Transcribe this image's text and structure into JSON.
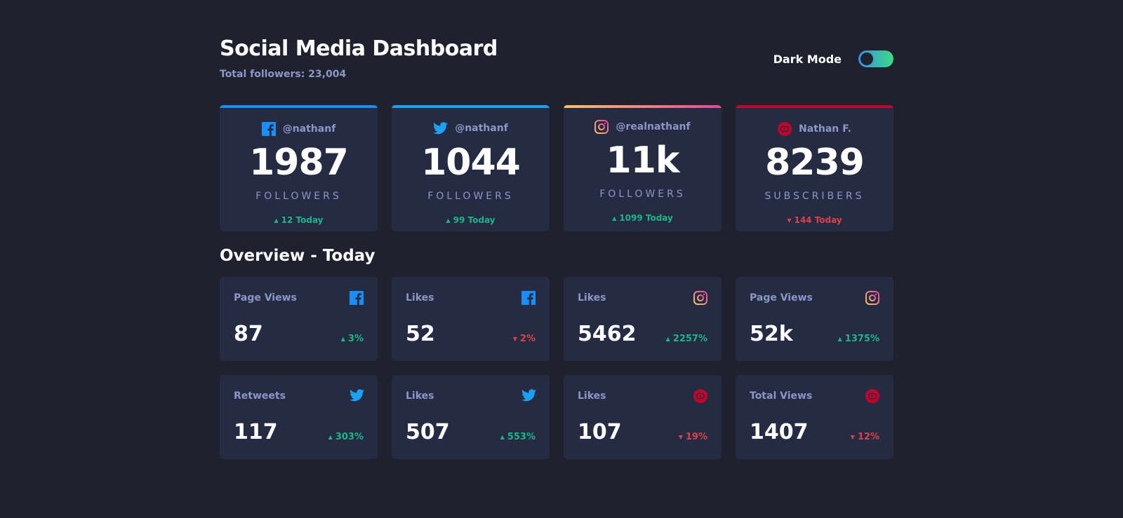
{
  "header": {
    "title": "Social Media Dashboard",
    "total_followers": "Total followers: 23,004",
    "toggle_label": "Dark Mode"
  },
  "followers": [
    {
      "platform": "facebook",
      "icon": "facebook-icon",
      "handle": "@nathanf",
      "count": "1987",
      "label": "FOLLOWERS",
      "today": "12 Today",
      "trend": "up",
      "accent": "#198ff5"
    },
    {
      "platform": "twitter",
      "icon": "twitter-icon",
      "handle": "@nathanf",
      "count": "1044",
      "label": "FOLLOWERS",
      "today": "99 Today",
      "trend": "up",
      "accent": "#1ca0f2"
    },
    {
      "platform": "instagram",
      "icon": "instagram-icon",
      "handle": "@realnathanf",
      "count": "11k",
      "label": "FOLLOWERS",
      "today": "1099 Today",
      "trend": "up",
      "accent": "#df4996"
    },
    {
      "platform": "youtube",
      "icon": "youtube-icon",
      "handle": "Nathan F.",
      "count": "8239",
      "label": "SUBSCRIBERS",
      "today": "144 Today",
      "trend": "down",
      "accent": "#c4032a"
    }
  ],
  "overview": {
    "title": "Overview - Today",
    "cards": [
      {
        "label": "Page Views",
        "platform": "facebook",
        "value": "87",
        "change": "3%",
        "trend": "up"
      },
      {
        "label": "Likes",
        "platform": "facebook",
        "value": "52",
        "change": "2%",
        "trend": "down"
      },
      {
        "label": "Likes",
        "platform": "instagram",
        "value": "5462",
        "change": "2257%",
        "trend": "up"
      },
      {
        "label": "Page Views",
        "platform": "instagram",
        "value": "52k",
        "change": "1375%",
        "trend": "up"
      },
      {
        "label": "Retweets",
        "platform": "twitter",
        "value": "117",
        "change": "303%",
        "trend": "up"
      },
      {
        "label": "Likes",
        "platform": "twitter",
        "value": "507",
        "change": "553%",
        "trend": "up"
      },
      {
        "label": "Likes",
        "platform": "youtube",
        "value": "107",
        "change": "19%",
        "trend": "down"
      },
      {
        "label": "Total Views",
        "platform": "youtube",
        "value": "1407",
        "change": "12%",
        "trend": "down"
      }
    ]
  },
  "colors": {
    "background": "#1f212e",
    "card": "#252b43",
    "text_muted": "#8b97c6",
    "up": "#1eb589",
    "down": "#dc414c",
    "toggle_gradient_start": "#378fe6",
    "toggle_gradient_end": "#3eda82"
  }
}
